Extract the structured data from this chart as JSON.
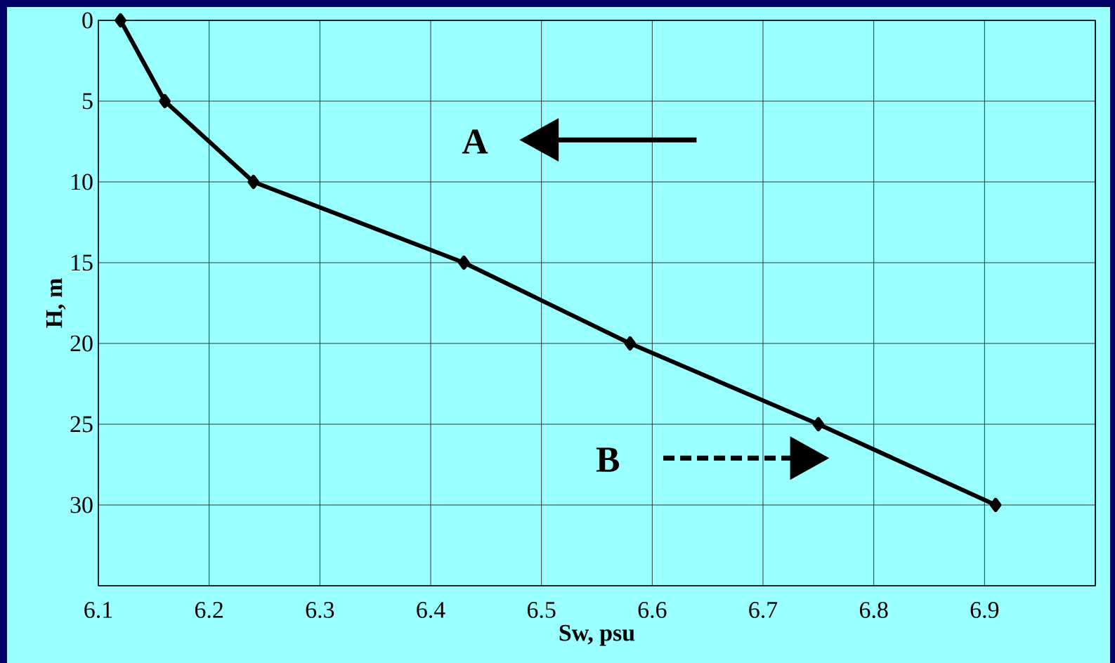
{
  "chart_data": {
    "type": "line",
    "xlabel": "Sw, psu",
    "ylabel": "H, m",
    "annotations": [
      "A",
      "B"
    ],
    "series": [
      {
        "x": [
          6.12,
          6.16,
          6.24,
          6.43,
          6.58,
          6.75,
          6.91
        ],
        "values": [
          0,
          5,
          10,
          15,
          20,
          25,
          30
        ],
        "color": "#000000"
      }
    ],
    "xlim": [
      6.1,
      7.0
    ],
    "xticks": [
      6.1,
      6.2,
      6.3,
      6.4,
      6.5,
      6.6,
      6.7,
      6.8,
      6.9,
      {
        "value": 7.0,
        "label": null
      }
    ],
    "ylim": [
      35,
      0
    ],
    "yticks": [
      0,
      5,
      10,
      15,
      20,
      25,
      30,
      {
        "value": 35,
        "label": null
      }
    ],
    "grid": true,
    "marker": "diamond",
    "line_style": "solid"
  }
}
